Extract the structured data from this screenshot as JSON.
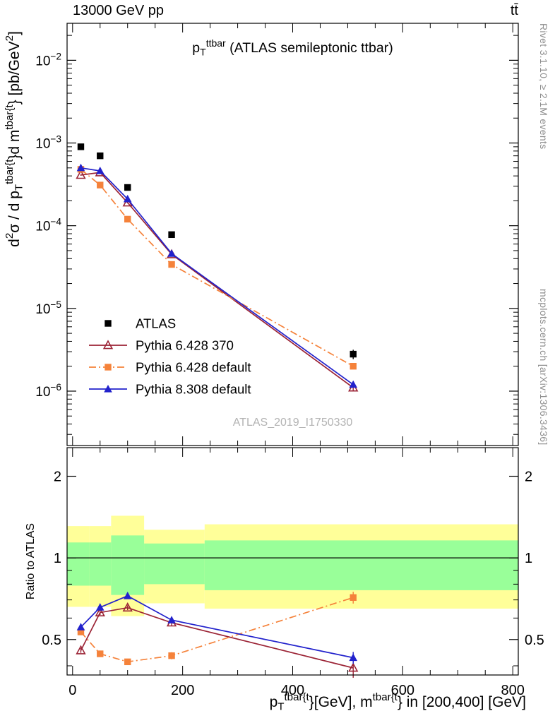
{
  "header": {
    "left": "13000 GeV pp",
    "right": "tt̄"
  },
  "side_notes": {
    "top": "Rivet 3.1.10, ≥ 2.1M events",
    "bottom": "mcplots.cern.ch [arXiv:1306.3436]"
  },
  "watermark": "ATLAS_2019_I1750330",
  "chart_data": {
    "type": "line",
    "title_rich": [
      {
        "t": "p"
      },
      {
        "t": "T",
        "s": "sub"
      },
      {
        "t": "ttbar",
        "s": "sup"
      },
      {
        "t": " (ATLAS semileptonic ttbar)"
      }
    ],
    "ylabel_rich": [
      {
        "t": "d"
      },
      {
        "t": "2",
        "s": "sup"
      },
      {
        "t": "σ / d p"
      },
      {
        "t": "T",
        "s": "sub"
      },
      {
        "t": "tbar{t",
        "s": "sup"
      },
      {
        "t": "}d m"
      },
      {
        "t": "tbar{t",
        "s": "sup"
      },
      {
        "t": "} [pb/GeV"
      },
      {
        "t": "2",
        "s": "sup"
      },
      {
        "t": "]"
      }
    ],
    "xlabel_rich": [
      {
        "t": "p"
      },
      {
        "t": "T",
        "s": "sub"
      },
      {
        "t": "tbar{t",
        "s": "sup"
      },
      {
        "t": "}[GeV], m"
      },
      {
        "t": "tbar{t",
        "s": "sup"
      },
      {
        "t": "} in [200,400] [GeV]"
      }
    ],
    "ratio_ylabel": "Ratio to ATLAS",
    "xlim": [
      -10,
      810
    ],
    "ylim_main": [
      2.2e-07,
      0.028
    ],
    "ylim_ratio": [
      0.37,
      2.55
    ],
    "x_major_ticks": [
      0,
      200,
      400,
      600,
      800
    ],
    "x_minor_step": 50,
    "ratio_major_ticks": [
      0.5,
      1,
      2
    ],
    "ratio_minor_ticks": [
      0.4,
      0.6,
      0.7,
      0.8,
      0.9
    ],
    "x": [
      15,
      50,
      100,
      180,
      510
    ],
    "series": [
      {
        "name": "ATLAS",
        "color": "#000000",
        "marker": "square-filled",
        "line": null,
        "values": [
          0.0009,
          0.0007,
          0.00029,
          7.8e-05,
          2.8e-06
        ],
        "rel_err": [
          0.04,
          0.04,
          0.045,
          0.05,
          0.13
        ],
        "is_reference": true
      },
      {
        "name": "Pythia 6.428 370",
        "color": "#9b2335",
        "marker": "triangle-open",
        "line": "solid",
        "values": [
          0.00041,
          0.00044,
          0.00019,
          4.5e-05,
          1.1e-06
        ],
        "rel_err": [
          0.02,
          0.02,
          0.02,
          0.03,
          0.08
        ]
      },
      {
        "name": "Pythia 6.428 default",
        "color": "#f5823a",
        "marker": "square-filled",
        "line": "dashdot",
        "values": [
          0.00048,
          0.00031,
          0.00012,
          3.4e-05,
          2e-06
        ],
        "rel_err": [
          0.02,
          0.02,
          0.02,
          0.03,
          0.05
        ]
      },
      {
        "name": "Pythia 8.308 default",
        "color": "#2222cc",
        "marker": "triangle-filled",
        "line": "solid",
        "values": [
          0.0005,
          0.00046,
          0.00021,
          4.6e-05,
          1.2e-06
        ],
        "rel_err": [
          0.015,
          0.015,
          0.015,
          0.02,
          0.05
        ]
      }
    ],
    "bands": [
      {
        "xlow": -10,
        "xhigh": 30,
        "yellow": [
          0.66,
          1.31
        ],
        "green": [
          0.79,
          1.14
        ]
      },
      {
        "xlow": 30,
        "xhigh": 70,
        "yellow": [
          0.66,
          1.31
        ],
        "green": [
          0.79,
          1.14
        ]
      },
      {
        "xlow": 70,
        "xhigh": 130,
        "yellow": [
          0.61,
          1.43
        ],
        "green": [
          0.73,
          1.21
        ]
      },
      {
        "xlow": 130,
        "xhigh": 240,
        "yellow": [
          0.68,
          1.27
        ],
        "green": [
          0.8,
          1.13
        ]
      },
      {
        "xlow": 240,
        "xhigh": 810,
        "yellow": [
          0.65,
          1.33
        ],
        "green": [
          0.76,
          1.16
        ]
      }
    ],
    "band_colors": {
      "yellow": "#ffff99",
      "green": "#99ff99"
    },
    "ratio_reference": 1
  }
}
